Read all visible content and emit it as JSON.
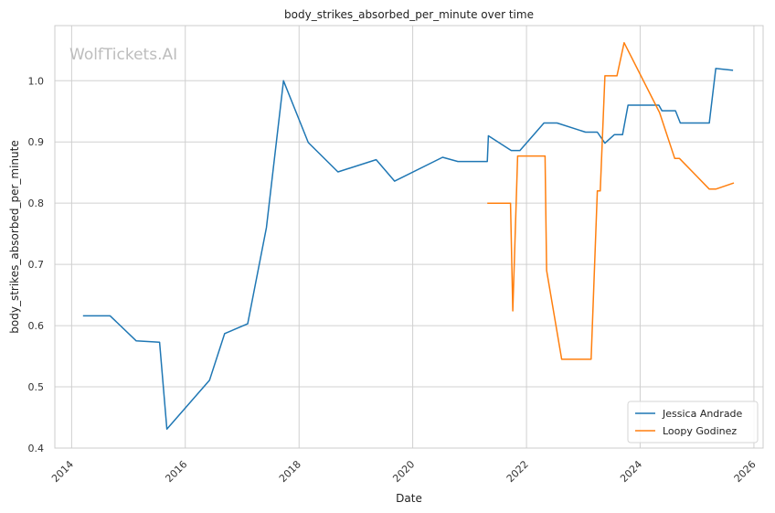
{
  "watermark": "WolfTickets.AI",
  "chart_data": {
    "type": "line",
    "title": "body_strikes_absorbed_per_minute over time",
    "xlabel": "Date",
    "ylabel": "body_strikes_absorbed_per_minute",
    "xlim": [
      "2013-09-15",
      "2026-03-01"
    ],
    "ylim": [
      0.4,
      1.09
    ],
    "x_ticks": [
      "2014",
      "2016",
      "2018",
      "2020",
      "2022",
      "2024",
      "2026"
    ],
    "y_ticks": [
      "0.4",
      "0.5",
      "0.6",
      "0.7",
      "0.8",
      "0.9",
      "1.0"
    ],
    "grid": true,
    "legend_position": "lower-right",
    "series": [
      {
        "name": "Jessica Andrade",
        "color": "#1f77b4",
        "points": [
          [
            "2014-03-15",
            0.616
          ],
          [
            "2014-09-05",
            0.616
          ],
          [
            "2015-02-20",
            0.575
          ],
          [
            "2015-07-20",
            0.573
          ],
          [
            "2015-09-05",
            0.431
          ],
          [
            "2016-06-05",
            0.511
          ],
          [
            "2016-09-10",
            0.587
          ],
          [
            "2017-02-05",
            0.603
          ],
          [
            "2017-06-05",
            0.76
          ],
          [
            "2017-09-23",
            1.0
          ],
          [
            "2018-03-01",
            0.899
          ],
          [
            "2018-09-08",
            0.851
          ],
          [
            "2019-05-11",
            0.871
          ],
          [
            "2019-09-07",
            0.836
          ],
          [
            "2020-07-11",
            0.875
          ],
          [
            "2020-10-17",
            0.868
          ],
          [
            "2021-04-24",
            0.868
          ],
          [
            "2021-05-01",
            0.91
          ],
          [
            "2021-09-25",
            0.886
          ],
          [
            "2021-11-20",
            0.886
          ],
          [
            "2022-04-23",
            0.931
          ],
          [
            "2022-07-16",
            0.931
          ],
          [
            "2023-01-15",
            0.916
          ],
          [
            "2023-04-01",
            0.916
          ],
          [
            "2023-05-20",
            0.898
          ],
          [
            "2023-07-20",
            0.912
          ],
          [
            "2023-09-10",
            0.912
          ],
          [
            "2023-10-15",
            0.96
          ],
          [
            "2024-04-30",
            0.96
          ],
          [
            "2024-05-20",
            0.951
          ],
          [
            "2024-08-15",
            0.951
          ],
          [
            "2024-09-15",
            0.931
          ],
          [
            "2025-03-20",
            0.931
          ],
          [
            "2025-05-01",
            1.02
          ],
          [
            "2025-08-20",
            1.017
          ]
        ]
      },
      {
        "name": "Loopy Godinez",
        "color": "#ff7f0e",
        "points": [
          [
            "2021-04-24",
            0.8
          ],
          [
            "2021-09-20",
            0.8
          ],
          [
            "2021-10-05",
            0.624
          ],
          [
            "2021-11-05",
            0.877
          ],
          [
            "2022-04-30",
            0.877
          ],
          [
            "2022-05-10",
            0.69
          ],
          [
            "2022-08-15",
            0.545
          ],
          [
            "2023-02-20",
            0.545
          ],
          [
            "2023-04-01",
            0.82
          ],
          [
            "2023-04-20",
            0.82
          ],
          [
            "2023-05-20",
            1.008
          ],
          [
            "2023-08-05",
            1.008
          ],
          [
            "2023-09-20",
            1.062
          ],
          [
            "2024-05-05",
            0.948
          ],
          [
            "2024-08-10",
            0.873
          ],
          [
            "2024-09-10",
            0.873
          ],
          [
            "2025-03-20",
            0.823
          ],
          [
            "2025-05-01",
            0.823
          ],
          [
            "2025-08-25",
            0.833
          ]
        ]
      }
    ]
  }
}
